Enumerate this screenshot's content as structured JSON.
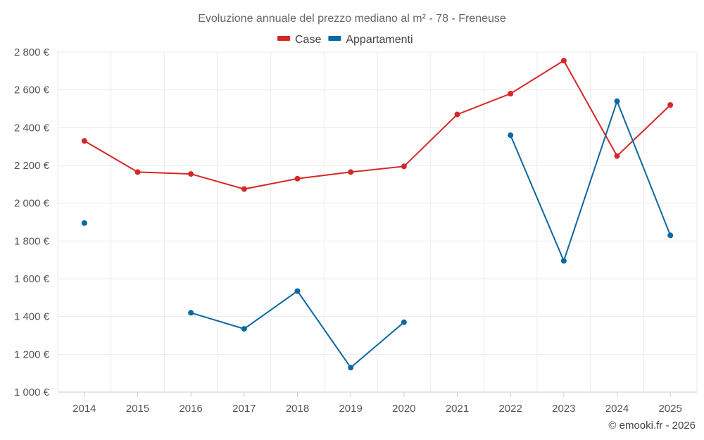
{
  "chart_data": {
    "type": "line",
    "title": "Evoluzione annuale del prezzo mediano al m² - 78 - Freneuse",
    "categories": [
      "2014",
      "2015",
      "2016",
      "2017",
      "2018",
      "2019",
      "2020",
      "2021",
      "2022",
      "2023",
      "2024",
      "2025"
    ],
    "ylim": [
      1000,
      2800
    ],
    "yticks": [
      1000,
      1200,
      1400,
      1600,
      1800,
      2000,
      2200,
      2400,
      2600,
      2800
    ],
    "ytick_labels": [
      "1 000 €",
      "1 200 €",
      "1 400 €",
      "1 600 €",
      "1 800 €",
      "2 000 €",
      "2 200 €",
      "2 400 €",
      "2 600 €",
      "2 800 €"
    ],
    "xlabel": "",
    "ylabel": "",
    "grid": true,
    "legend_position": "top-center",
    "series": [
      {
        "name": "Case",
        "color": "#d62728",
        "values": [
          2330,
          2165,
          2155,
          2075,
          2130,
          2165,
          2195,
          2470,
          2580,
          2755,
          2250,
          2520
        ]
      },
      {
        "name": "Appartamenti",
        "color": "#0a69a0",
        "values": [
          1895,
          null,
          1420,
          1335,
          1535,
          1130,
          1370,
          null,
          2360,
          1695,
          2540,
          1830
        ]
      }
    ]
  },
  "credit": "© emooki.fr - 2026"
}
